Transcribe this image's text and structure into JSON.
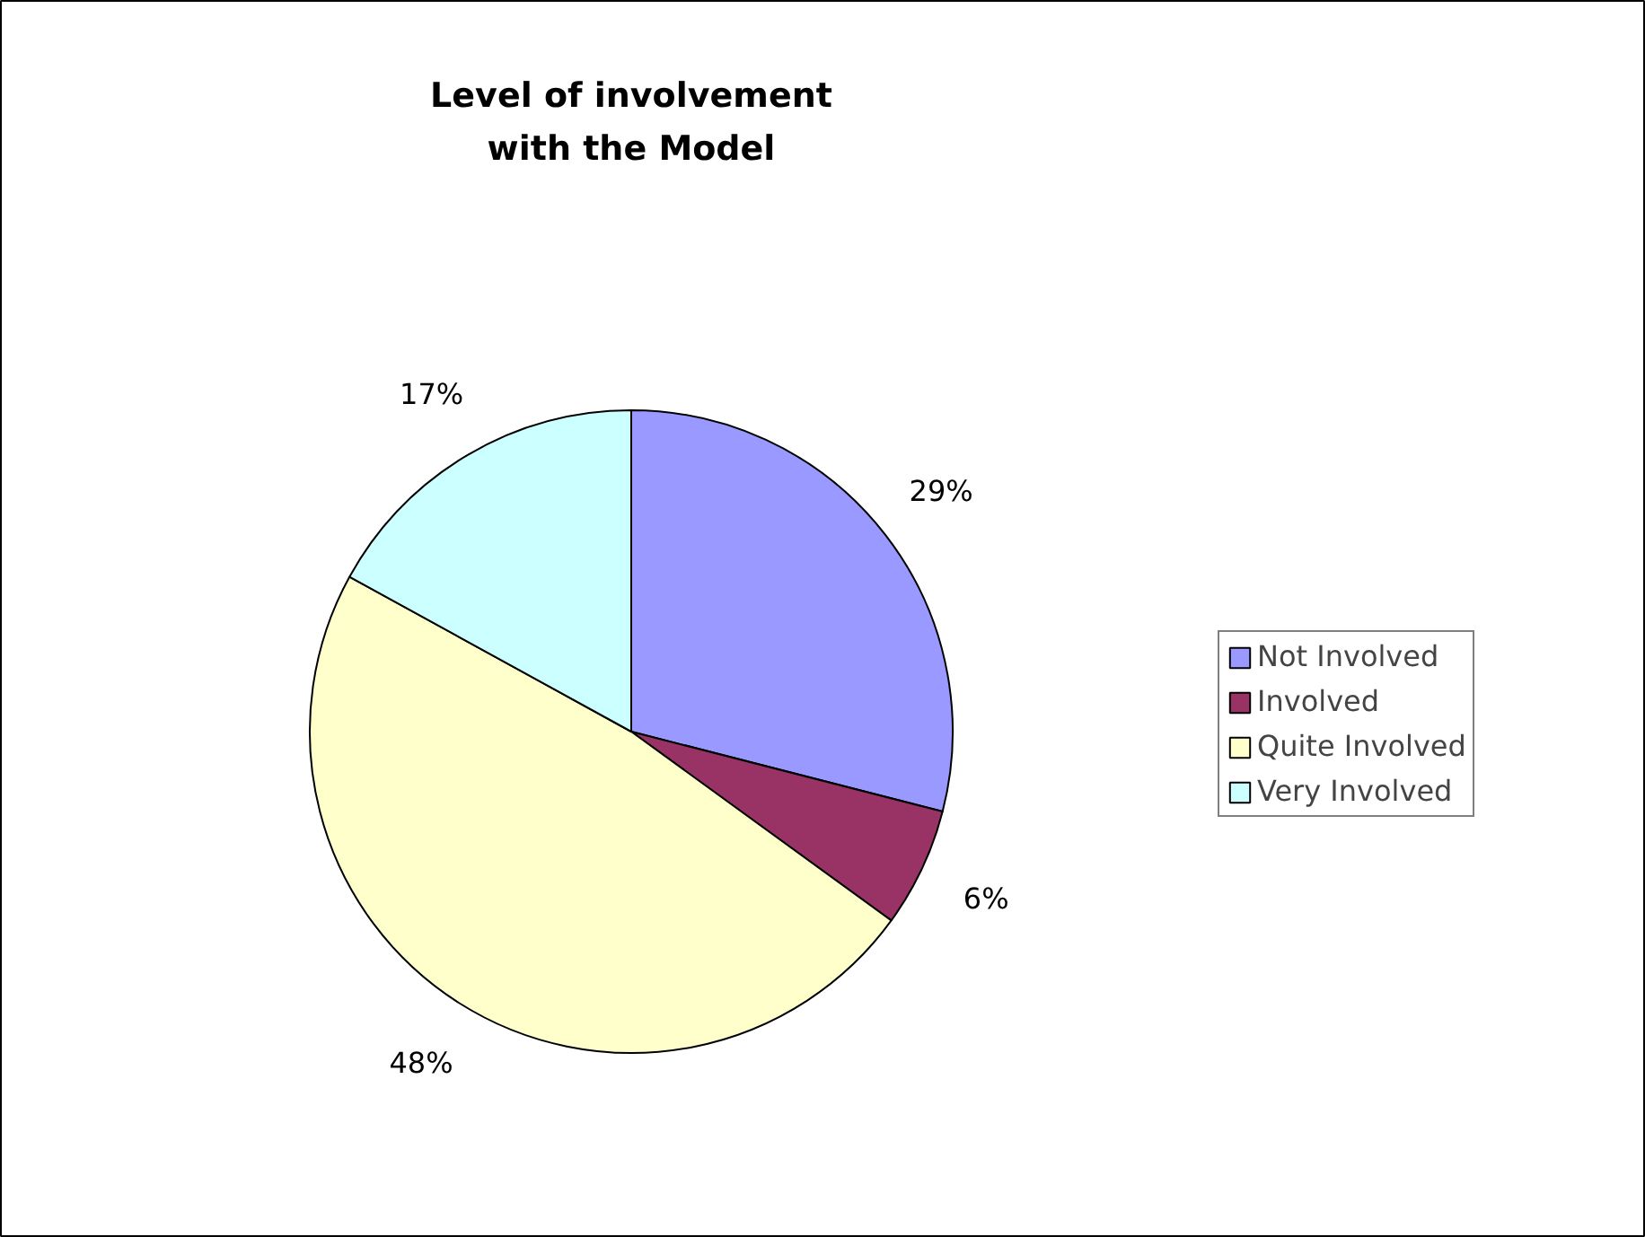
{
  "chart_data": {
    "type": "pie",
    "title": "Level of involvement\nwith the Model",
    "categories": [
      "Not Involved",
      "Involved",
      "Quite Involved",
      "Very Involved"
    ],
    "values": [
      29,
      6,
      48,
      17
    ],
    "colors": [
      "#9999ff",
      "#993366",
      "#ffffcc",
      "#ccffff"
    ],
    "value_labels": [
      "29%",
      "6%",
      "48%",
      "17%"
    ],
    "legend": "right"
  }
}
